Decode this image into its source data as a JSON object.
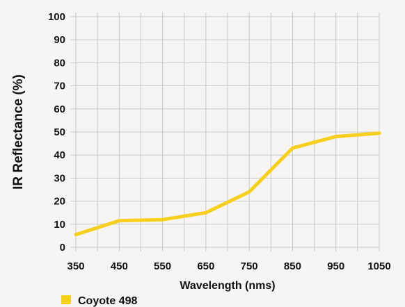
{
  "chart_data": {
    "type": "line",
    "title": "",
    "xlabel": "Wavelength (nms)",
    "ylabel": "IR Reflectance (%)",
    "x": [
      350,
      450,
      550,
      650,
      750,
      850,
      950,
      1050
    ],
    "xlim": [
      350,
      1050
    ],
    "ylim": [
      0,
      100
    ],
    "x_ticks": [
      "350",
      "450",
      "550",
      "650",
      "750",
      "850",
      "950",
      "1050"
    ],
    "y_ticks": [
      "0",
      "10",
      "20",
      "30",
      "40",
      "50",
      "60",
      "70",
      "80",
      "90",
      "100"
    ],
    "grid": true,
    "legend_position": "bottom-left",
    "series": [
      {
        "name": "Coyote 498",
        "color": "#f6cf1f",
        "values": [
          5.5,
          11.5,
          12,
          15,
          24,
          43,
          48,
          49.5
        ]
      }
    ]
  }
}
